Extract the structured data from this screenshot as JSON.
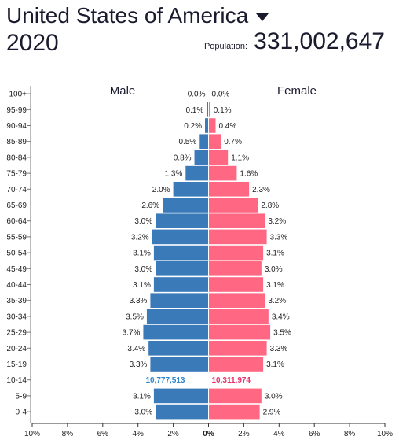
{
  "header": {
    "country": "United States of America",
    "year": "2020",
    "population_label": "Population:",
    "population_value": "331,002,647"
  },
  "colors": {
    "male": "#3a7ab8",
    "female": "#ff6783",
    "male_total": "#2f86c9",
    "female_total": "#e8336d"
  },
  "chart_data": {
    "type": "bar",
    "orientation": "horizontal",
    "subtype": "population-pyramid",
    "categories": [
      "100+",
      "95-99",
      "90-94",
      "85-89",
      "80-84",
      "75-79",
      "70-74",
      "65-69",
      "60-64",
      "55-59",
      "50-54",
      "45-49",
      "40-44",
      "35-39",
      "30-34",
      "25-29",
      "20-24",
      "15-19",
      "10-14",
      "5-9",
      "0-4"
    ],
    "series": [
      {
        "name": "Male",
        "values": [
          0.0,
          0.1,
          0.2,
          0.5,
          0.8,
          1.3,
          2.0,
          2.6,
          3.0,
          3.2,
          3.1,
          3.0,
          3.1,
          3.3,
          3.5,
          3.7,
          3.4,
          3.3,
          null,
          3.1,
          3.0
        ],
        "labels": [
          "0.0%",
          "0.1%",
          "0.2%",
          "0.5%",
          "0.8%",
          "1.3%",
          "2.0%",
          "2.6%",
          "3.0%",
          "3.2%",
          "3.1%",
          "3.0%",
          "3.1%",
          "3.3%",
          "3.5%",
          "3.7%",
          "3.4%",
          "3.3%",
          "",
          "3.1%",
          "3.0%"
        ]
      },
      {
        "name": "Female",
        "values": [
          0.0,
          0.1,
          0.4,
          0.7,
          1.1,
          1.6,
          2.3,
          2.8,
          3.2,
          3.3,
          3.1,
          3.0,
          3.1,
          3.2,
          3.4,
          3.5,
          3.3,
          3.1,
          null,
          3.0,
          2.9
        ],
        "labels": [
          "0.0%",
          "0.1%",
          "0.4%",
          "0.7%",
          "1.1%",
          "1.6%",
          "2.3%",
          "2.8%",
          "3.2%",
          "3.3%",
          "3.1%",
          "3.0%",
          "3.1%",
          "3.2%",
          "3.4%",
          "3.5%",
          "3.3%",
          "3.1%",
          "",
          "3.0%",
          "2.9%"
        ]
      }
    ],
    "totals": {
      "male": "10,777,513",
      "female": "10,311,974",
      "category": "10-14"
    },
    "xticks": [
      "10%",
      "8%",
      "6%",
      "4%",
      "2%",
      "0%",
      "2%",
      "4%",
      "6%",
      "8%",
      "10%"
    ],
    "xlim": [
      -10,
      10
    ]
  }
}
